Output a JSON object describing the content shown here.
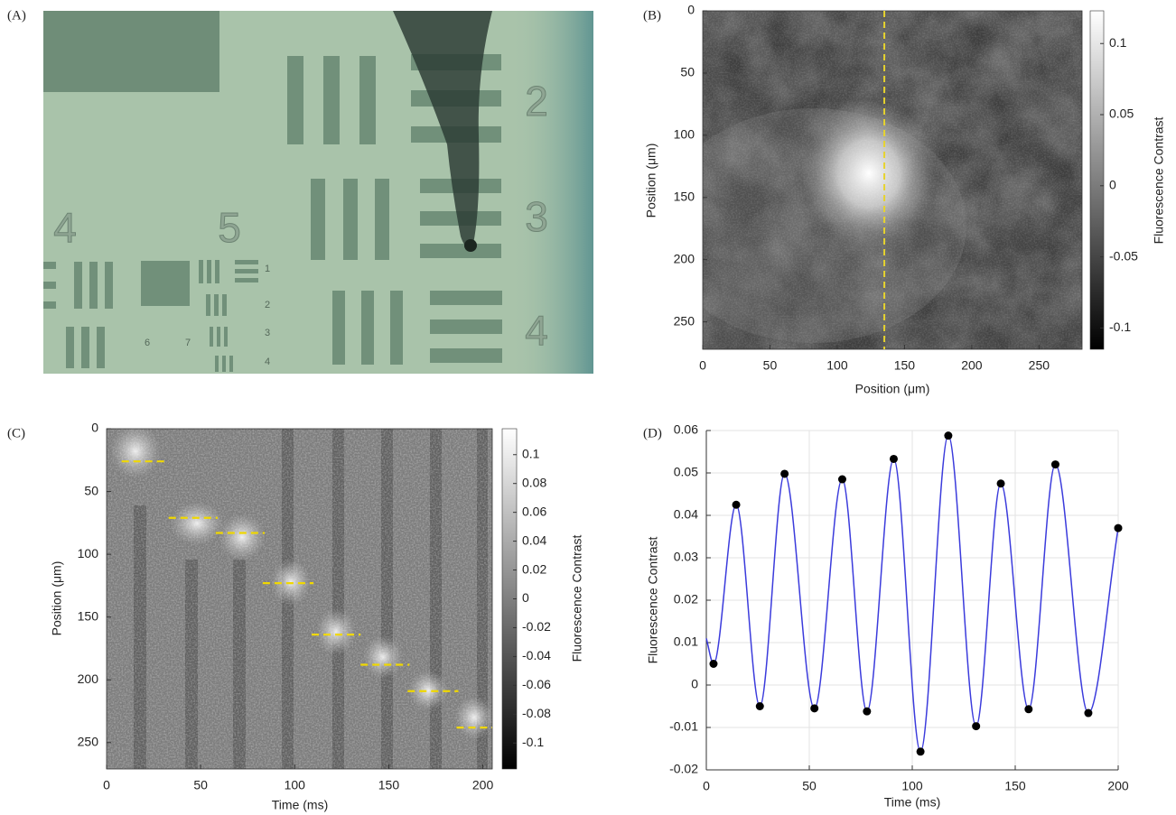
{
  "chart_data": [
    {
      "type": "image",
      "label": "(A)",
      "target_numbers": [
        "2",
        "3",
        "4",
        "4",
        "5",
        "1",
        "2",
        "3",
        "4",
        "6",
        "7"
      ]
    },
    {
      "type": "heatmap",
      "label": "(B)",
      "xlabel": "Position (μm)",
      "ylabel": "Position (μm)",
      "colorbar_label": "Fluorescence Contrast",
      "xlim": [
        0,
        282
      ],
      "xticks": [
        0,
        50,
        100,
        150,
        200,
        250
      ],
      "ylim": [
        0,
        272
      ],
      "yticks": [
        0,
        50,
        100,
        150,
        200,
        250
      ],
      "y_reversed": true,
      "colormap": "gray",
      "clim": [
        -0.115,
        0.123
      ],
      "cticks": [
        -0.1,
        -0.05,
        0,
        0.05,
        0.1
      ],
      "dashed_line_x": 135,
      "dash_color": "#e6d32e"
    },
    {
      "type": "heatmap",
      "label": "(C)",
      "xlabel": "Time (ms)",
      "ylabel": "Position (μm)",
      "colorbar_label": "Fluorescence Contrast",
      "xlim": [
        0,
        205
      ],
      "xticks": [
        0,
        50,
        100,
        150,
        200
      ],
      "ylim": [
        0,
        271
      ],
      "yticks": [
        0,
        50,
        100,
        150,
        200,
        250
      ],
      "y_reversed": true,
      "colormap": "gray",
      "clim": [
        -0.118,
        0.118
      ],
      "cticks": [
        -0.1,
        -0.08,
        -0.06,
        -0.04,
        -0.02,
        0,
        0.02,
        0.04,
        0.06,
        0.08,
        0.1
      ],
      "dashes": [
        {
          "x": [
            8,
            33
          ],
          "y": 26
        },
        {
          "x": [
            33,
            59
          ],
          "y": 71
        },
        {
          "x": [
            58,
            84
          ],
          "y": 83
        },
        {
          "x": [
            83,
            110
          ],
          "y": 123
        },
        {
          "x": [
            109,
            135
          ],
          "y": 164
        },
        {
          "x": [
            135,
            161
          ],
          "y": 188
        },
        {
          "x": [
            160,
            187
          ],
          "y": 209
        },
        {
          "x": [
            186,
            205
          ],
          "y": 238
        }
      ],
      "dash_color": "#f0d800"
    },
    {
      "type": "line",
      "label": "(D)",
      "xlabel": "Time (ms)",
      "ylabel": "Fluorescence Contrast",
      "xlim": [
        0,
        200
      ],
      "xticks": [
        0,
        50,
        100,
        150,
        200
      ],
      "ylim": [
        -0.02,
        0.06
      ],
      "yticks": [
        -0.02,
        -0.01,
        0,
        0.01,
        0.02,
        0.03,
        0.04,
        0.05,
        0.06
      ],
      "grid": true,
      "series": [
        {
          "color": "#3b3bdc",
          "x": [
            0,
            3.5,
            14.5,
            26,
            38,
            52.5,
            66,
            78,
            91,
            104,
            117.5,
            131,
            143,
            156.5,
            169.5,
            185.5,
            200
          ],
          "values": [
            0.011,
            0.005,
            0.0425,
            -0.005,
            0.0498,
            -0.0055,
            0.0485,
            -0.0062,
            0.0533,
            -0.0157,
            0.0588,
            -0.0097,
            0.0475,
            -0.0057,
            0.052,
            -0.0066,
            0.037
          ]
        },
        {
          "color": "#000000",
          "marker": "o",
          "x": [
            3.5,
            14.5,
            26,
            38,
            52.5,
            66,
            78,
            91,
            104,
            117.5,
            131,
            143,
            156.5,
            169.5,
            185.5,
            200
          ],
          "values": [
            0.005,
            0.0425,
            -0.005,
            0.0498,
            -0.0055,
            0.0485,
            -0.0062,
            0.0533,
            -0.0157,
            0.0588,
            -0.0097,
            0.0475,
            -0.0057,
            0.052,
            -0.0066,
            0.037
          ]
        }
      ]
    }
  ]
}
